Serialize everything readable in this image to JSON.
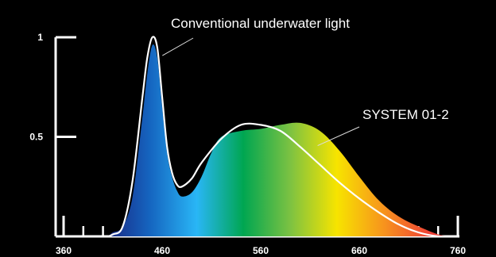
{
  "chart_data": {
    "type": "area",
    "xlim": [
      360,
      760
    ],
    "ylim": [
      0,
      1
    ],
    "x_ticks": [
      360,
      460,
      560,
      660,
      760
    ],
    "y_ticks": [
      0.5,
      1
    ],
    "grid": false,
    "colors": {
      "background": "#000000",
      "axis": "#ffffff",
      "outline": "#ffffff",
      "spectrum": [
        "#1a237e",
        "#1565c0",
        "#29b6f6",
        "#00a651",
        "#7cc242",
        "#f7e400",
        "#f7941d",
        "#ef4136",
        "#e02222"
      ]
    },
    "series": [
      {
        "name": "SYSTEM 01-2",
        "style": "spectrum-fill",
        "x": [
          360,
          400,
          410,
          420,
          430,
          440,
          445,
          450,
          455,
          460,
          465,
          470,
          475,
          480,
          490,
          500,
          510,
          520,
          540,
          560,
          580,
          600,
          620,
          640,
          660,
          680,
          700,
          720,
          740,
          752
        ],
        "y": [
          0.0,
          0.0,
          0.02,
          0.05,
          0.2,
          0.6,
          0.82,
          0.96,
          0.9,
          0.65,
          0.42,
          0.3,
          0.23,
          0.2,
          0.22,
          0.3,
          0.42,
          0.5,
          0.53,
          0.54,
          0.56,
          0.57,
          0.53,
          0.43,
          0.3,
          0.18,
          0.1,
          0.05,
          0.01,
          0.0
        ]
      },
      {
        "name": "Conventional underwater light",
        "style": "outline",
        "x": [
          360,
          400,
          410,
          420,
          430,
          440,
          445,
          450,
          455,
          460,
          465,
          470,
          475,
          480,
          490,
          500,
          520,
          540,
          560,
          580,
          600,
          620,
          640,
          660,
          680,
          700,
          720,
          740,
          752
        ],
        "y": [
          0.0,
          0.0,
          0.01,
          0.05,
          0.28,
          0.7,
          0.9,
          1.0,
          0.95,
          0.7,
          0.45,
          0.32,
          0.26,
          0.25,
          0.29,
          0.37,
          0.49,
          0.56,
          0.56,
          0.53,
          0.45,
          0.36,
          0.27,
          0.19,
          0.12,
          0.06,
          0.02,
          0.0,
          0.0
        ]
      }
    ],
    "annotations": [
      {
        "text": "Conventional underwater light",
        "series": 1,
        "x": 457,
        "y": 0.9
      },
      {
        "text": "SYSTEM 01-2",
        "series": 0,
        "x": 621,
        "y": 0.44
      }
    ]
  }
}
